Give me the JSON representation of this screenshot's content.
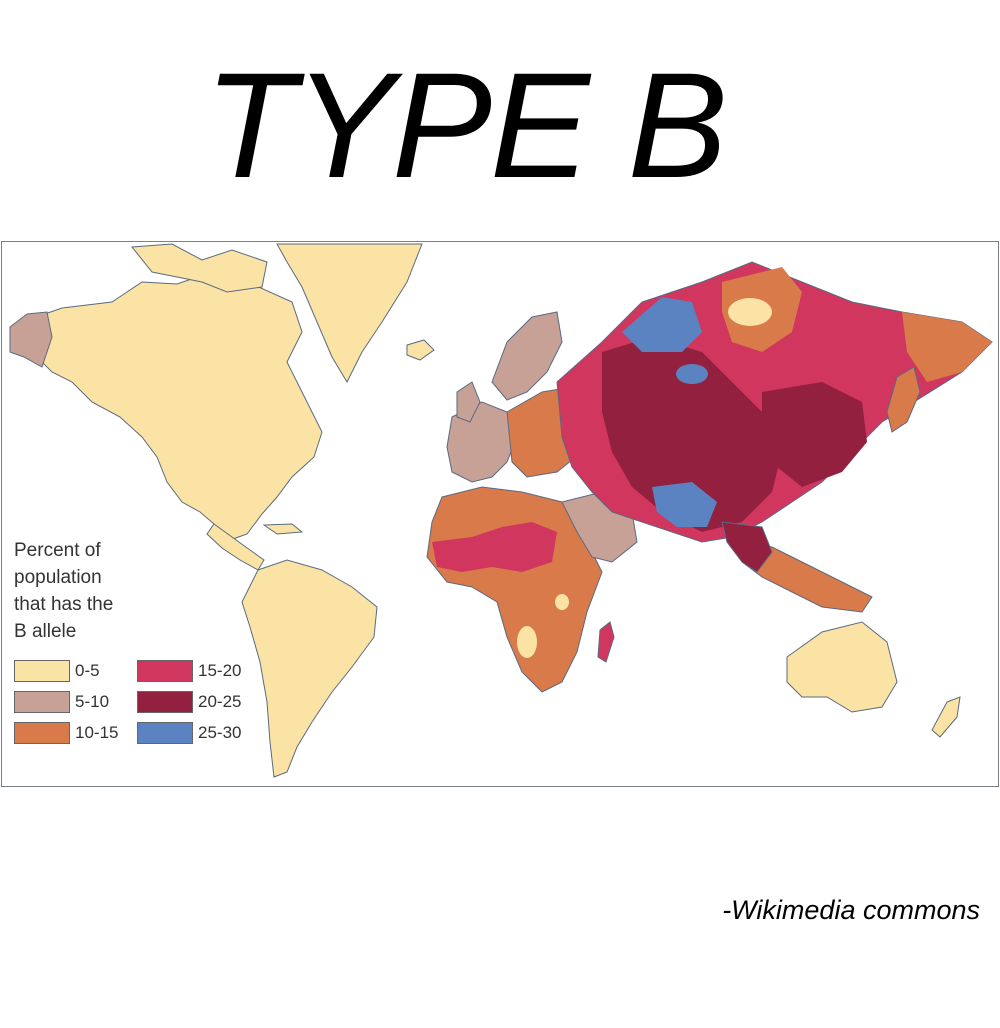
{
  "title": "TYPE B",
  "legend": {
    "title_lines": [
      "Percent of",
      "population",
      "that has the",
      "B allele"
    ],
    "items": [
      {
        "label": "0-5",
        "color": "#fbe3a5"
      },
      {
        "label": "5-10",
        "color": "#c8a196"
      },
      {
        "label": "10-15",
        "color": "#d97a4a"
      },
      {
        "label": "15-20",
        "color": "#d1365f"
      },
      {
        "label": "20-25",
        "color": "#93203f"
      },
      {
        "label": "25-30",
        "color": "#5b83c1"
      }
    ]
  },
  "credit": "-Wikimedia commons",
  "colors": {
    "ocean": "#ffffff",
    "outline": "#5a6a80",
    "frame": "#7a8088"
  }
}
